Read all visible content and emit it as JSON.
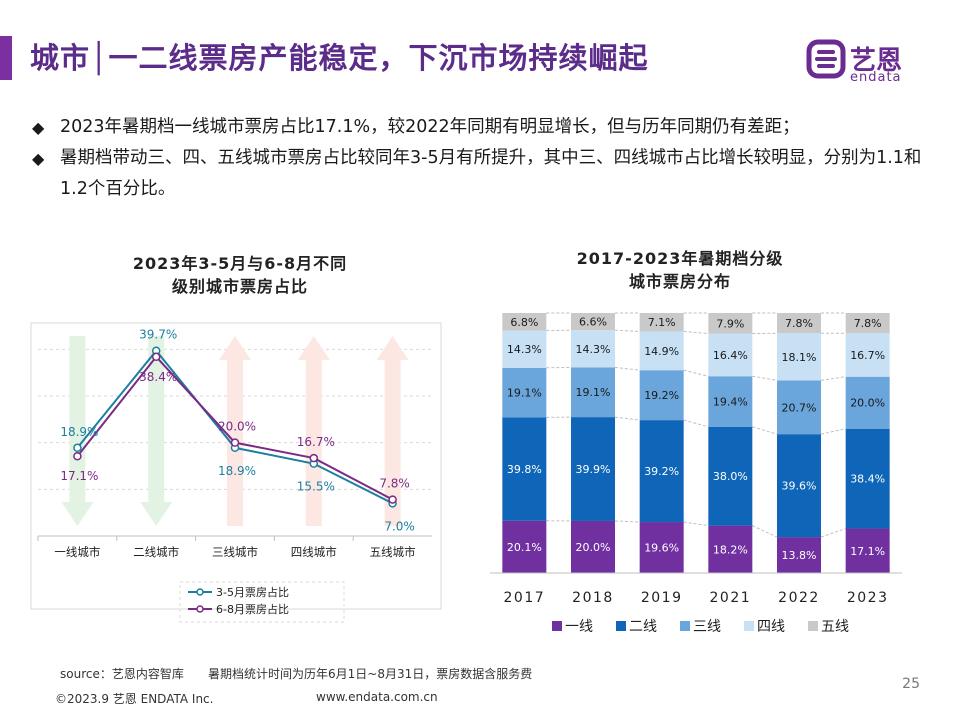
{
  "header": {
    "title": "城市│一二线票房产能稳定，下沉市场持续崛起",
    "logo_cn": "艺恩",
    "logo_en": "endata"
  },
  "bullets": [
    "2023年暑期档一线城市票房占比17.1%，较2022年同期有明显增长，但与历年同期仍有差距；",
    "暑期档带动三、四、五线城市票房占比较同年3-5月有所提升，其中三、四线城市占比增长较明显，分别为1.1和1.2个百分比。"
  ],
  "chart_data": [
    {
      "type": "line",
      "title_line1": "2023年3-5月与6-8月不同",
      "title_line2": "级别城市票房占比",
      "categories": [
        "一线城市",
        "二线城市",
        "三线城市",
        "四线城市",
        "五线城市"
      ],
      "series": [
        {
          "name": "3-5月票房占比",
          "values": [
            18.9,
            39.7,
            18.9,
            15.5,
            7.0
          ],
          "labels": [
            "18.9%",
            "39.7%",
            "18.9%",
            "15.5%",
            "7.0%"
          ],
          "color": "#1b7fa0"
        },
        {
          "name": "6-8月票房占比",
          "values": [
            17.1,
            38.4,
            20.0,
            16.7,
            7.8
          ],
          "labels": [
            "17.1%",
            "38.4%",
            "20.0%",
            "16.7%",
            "7.8%"
          ],
          "color": "#7b2a87"
        }
      ],
      "background_arrows": [
        "down",
        "down",
        "up",
        "up",
        "up"
      ],
      "ylim": [
        0,
        45
      ],
      "grid": true
    },
    {
      "type": "bar",
      "stacked": true,
      "title_line1": "2017-2023年暑期档分级",
      "title_line2": "城市票房分布",
      "categories": [
        "2017",
        "2018",
        "2019",
        "2021",
        "2022",
        "2023"
      ],
      "series": [
        {
          "name": "一线",
          "values": [
            20.1,
            20.0,
            19.6,
            18.2,
            13.8,
            17.1
          ],
          "labels": [
            "20.1%",
            "20.0%",
            "19.6%",
            "18.2%",
            "13.8%",
            "17.1%"
          ],
          "color": "#7030a0"
        },
        {
          "name": "二线",
          "values": [
            39.8,
            39.9,
            39.2,
            38.0,
            39.6,
            38.4
          ],
          "labels": [
            "39.8%",
            "39.9%",
            "39.2%",
            "38.0%",
            "39.6%",
            "38.4%"
          ],
          "color": "#0f65b8"
        },
        {
          "name": "三线",
          "values": [
            19.1,
            19.1,
            19.2,
            19.4,
            20.7,
            20.0
          ],
          "labels": [
            "19.1%",
            "19.1%",
            "19.2%",
            "19.4%",
            "20.7%",
            "20.0%"
          ],
          "color": "#6aa6db"
        },
        {
          "name": "四线",
          "values": [
            14.3,
            14.3,
            14.9,
            16.4,
            18.1,
            16.7
          ],
          "labels": [
            "14.3%",
            "14.3%",
            "14.9%",
            "16.4%",
            "18.1%",
            "16.7%"
          ],
          "color": "#c7e0f4"
        },
        {
          "name": "五线",
          "values": [
            6.8,
            6.6,
            7.1,
            7.9,
            7.8,
            7.8
          ],
          "labels": [
            "6.8%",
            "6.6%",
            "7.1%",
            "7.9%",
            "7.8%",
            "7.8%"
          ],
          "color": "#c9c9c9"
        }
      ],
      "ylim": [
        0,
        100
      ],
      "legend_position": "bottom"
    }
  ],
  "footer": {
    "source": "source：艺恩内容智库",
    "note": "暑期档统计时间为历年6月1日~8月31日，票房数据含服务费",
    "copyright": "©2023.9 艺恩 ENDATA Inc.",
    "website": "www.endata.com.cn",
    "page_number": "25"
  }
}
